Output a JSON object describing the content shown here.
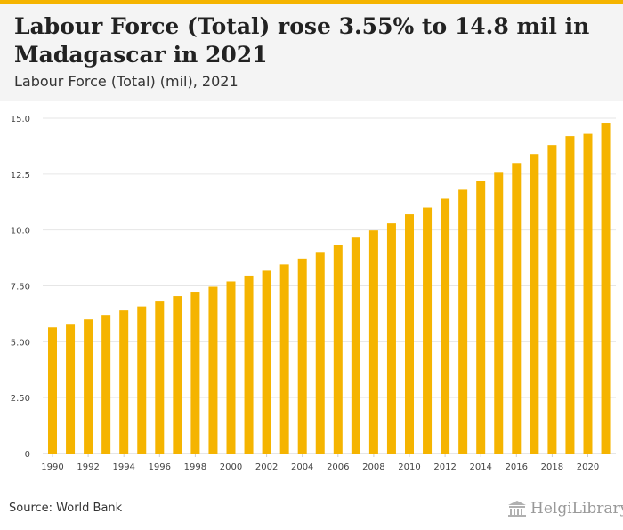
{
  "header": {
    "title": "Labour Force (Total) rose 3.55% to 14.8 mil in Madagascar in 2021",
    "subtitle": "Labour Force (Total) (mil), 2021"
  },
  "footer": {
    "source": "Source: World Bank",
    "logo_text": "HelgiLibrary"
  },
  "colors": {
    "bar": "#f5b400",
    "header_bg": "#f4f4f4",
    "accent": "#f5b400"
  },
  "chart_data": {
    "type": "bar",
    "title": "Labour Force (Total) (mil), 2021",
    "xlabel": "",
    "ylabel": "",
    "ylim": [
      0,
      15
    ],
    "y_ticks": [
      "0",
      "2.50",
      "5.00",
      "7.50",
      "10.0",
      "12.5",
      "15.0"
    ],
    "y_tick_values": [
      0,
      2.5,
      5,
      7.5,
      10,
      12.5,
      15
    ],
    "x_tick_labels": [
      "1990",
      "1992",
      "1994",
      "1996",
      "1998",
      "2000",
      "2002",
      "2004",
      "2006",
      "2008",
      "2010",
      "2012",
      "2014",
      "2016",
      "2018",
      "2020"
    ],
    "grid": true,
    "categories": [
      "1990",
      "1991",
      "1992",
      "1993",
      "1994",
      "1995",
      "1996",
      "1997",
      "1998",
      "1999",
      "2000",
      "2001",
      "2002",
      "2003",
      "2004",
      "2005",
      "2006",
      "2007",
      "2008",
      "2009",
      "2010",
      "2011",
      "2012",
      "2013",
      "2014",
      "2015",
      "2016",
      "2017",
      "2018",
      "2019",
      "2020",
      "2021"
    ],
    "values": [
      5.64,
      5.8,
      6.0,
      6.2,
      6.4,
      6.58,
      6.8,
      7.04,
      7.24,
      7.46,
      7.7,
      7.96,
      8.18,
      8.46,
      8.72,
      9.02,
      9.34,
      9.66,
      9.98,
      10.3,
      10.7,
      11.0,
      11.4,
      11.8,
      12.2,
      12.6,
      13.0,
      13.4,
      13.8,
      14.2,
      14.3,
      14.8
    ]
  }
}
